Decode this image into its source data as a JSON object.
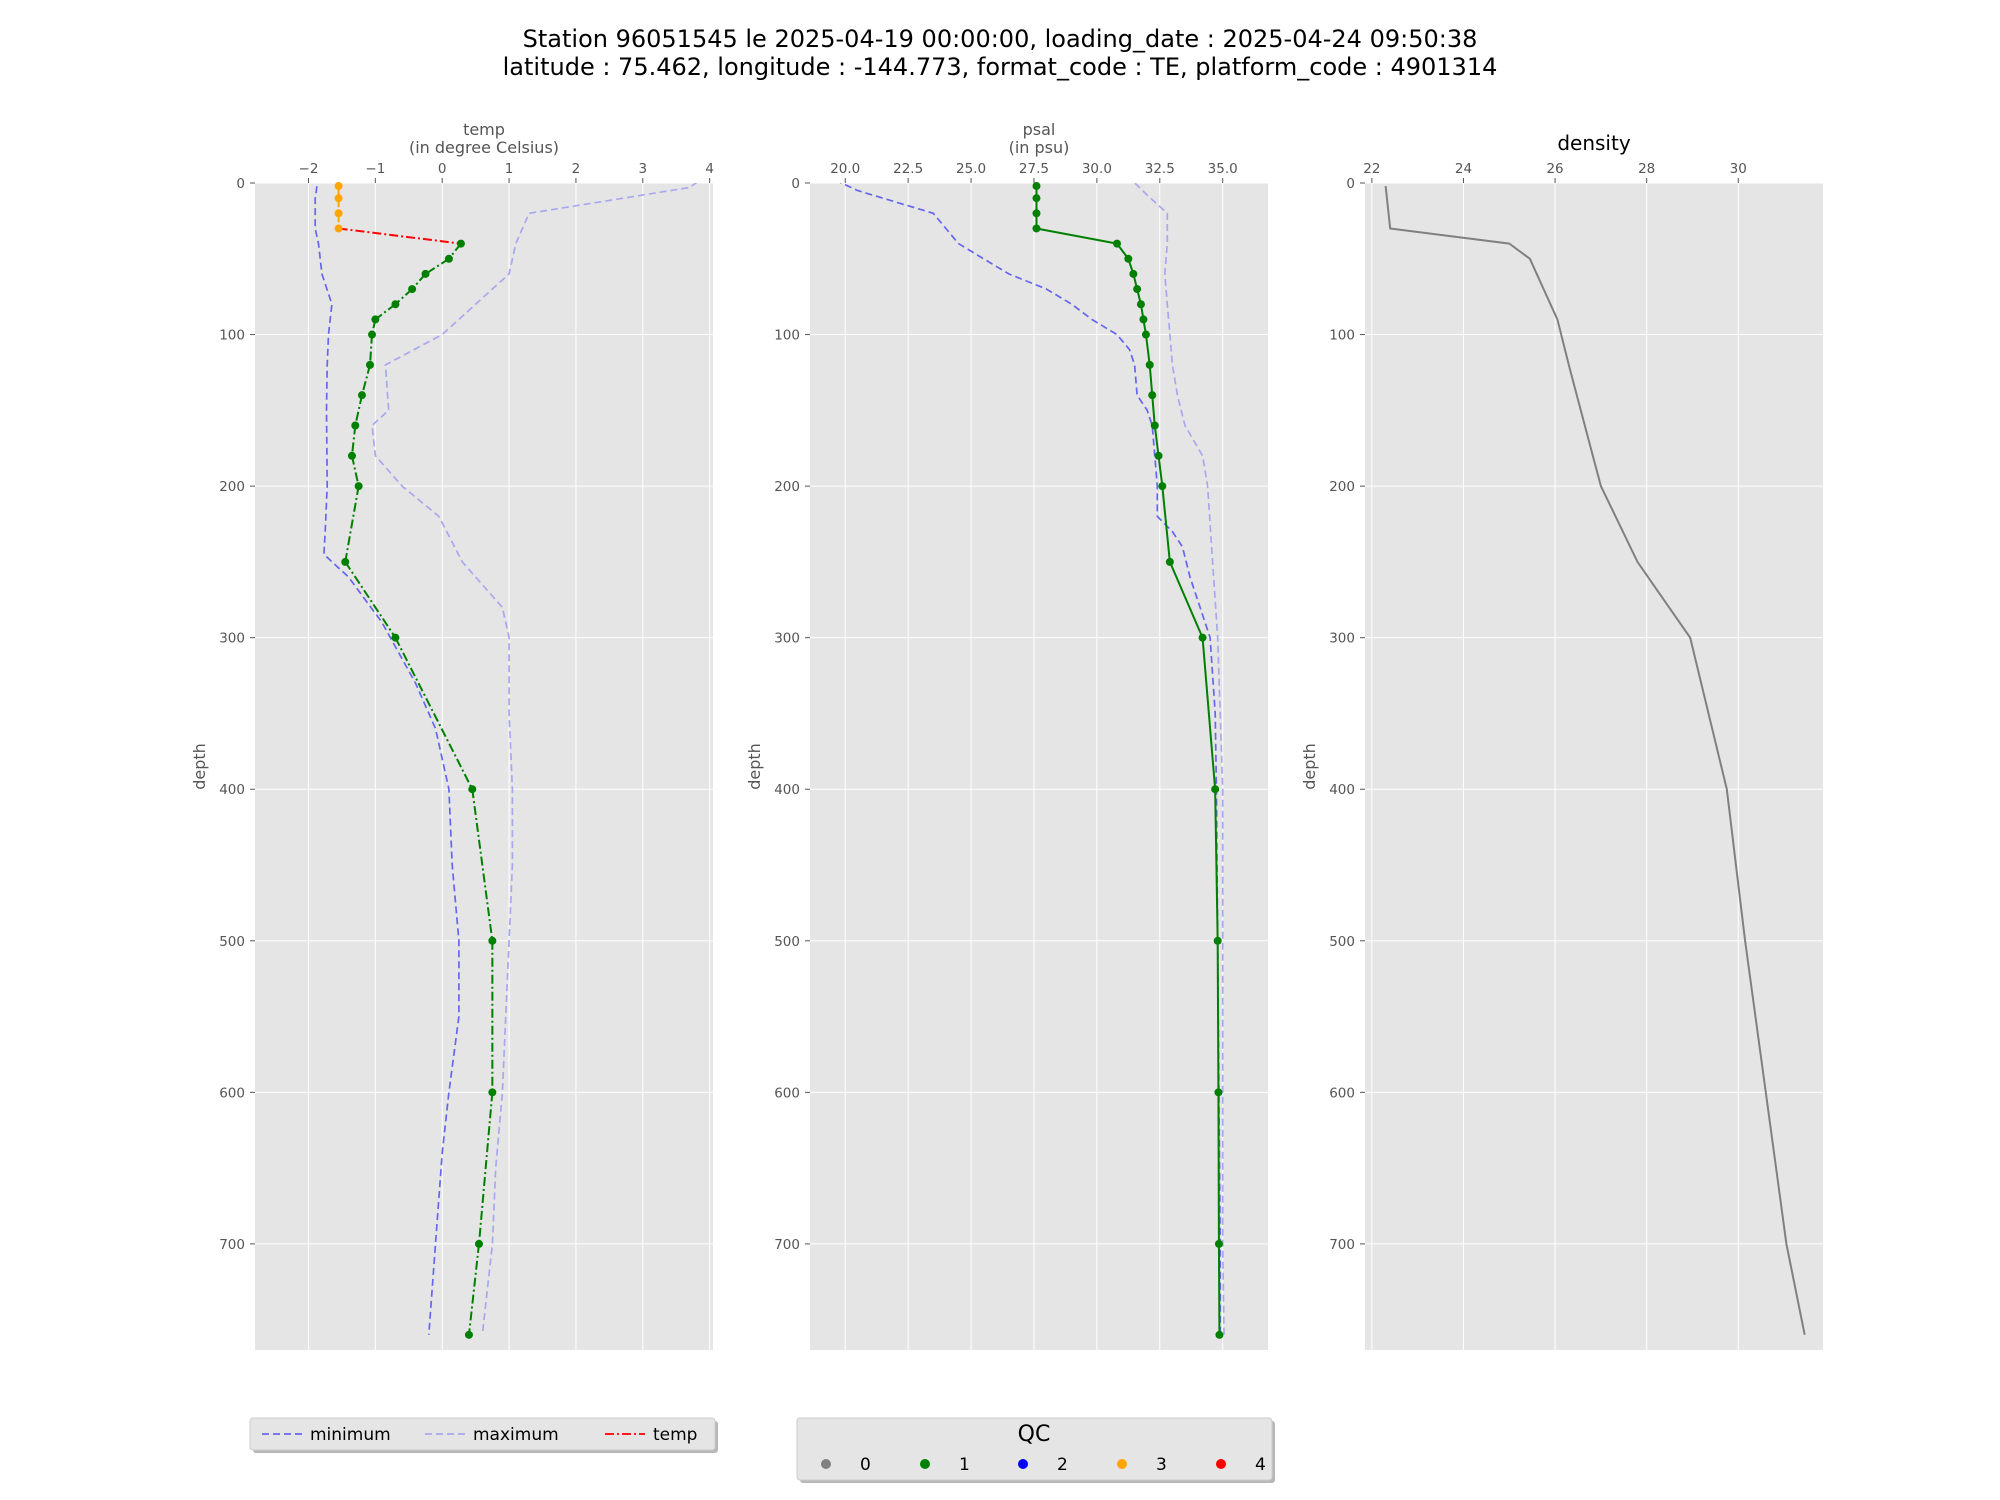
{
  "title": {
    "line1": "Station 96051545 le 2025-04-19 00:00:00, loading_date : 2025-04-24 09:50:38",
    "line2": "latitude : 75.462, longitude : -144.773, format_code : TE, platform_code : 4901314"
  },
  "colors": {
    "panel_bg": "#e5e5e5",
    "grid": "#ffffff",
    "minimum": "#6666ee",
    "maximum": "#a8a8ee",
    "temp_line": "#ff0000",
    "qc_1": "#008000",
    "qc_3": "#ffa500",
    "density": "#808080"
  },
  "chart_data": [
    {
      "type": "line",
      "panel": "temp",
      "title": "",
      "xlabel": "temp\n(in degree Celsius)",
      "ylabel": "depth",
      "x_axis_position": "top",
      "y_inverted": true,
      "xlim": [
        -2.8,
        4.05
      ],
      "ylim": [
        0,
        770
      ],
      "xticks": [
        -2,
        -1,
        0,
        1,
        2,
        3,
        4
      ],
      "xtick_labels": [
        "−2",
        "−1",
        "0",
        "1",
        "2",
        "3",
        "4"
      ],
      "yticks": [
        0,
        100,
        200,
        300,
        400,
        500,
        600,
        700
      ],
      "ytick_labels": [
        "0",
        "100",
        "200",
        "300",
        "400",
        "500",
        "600",
        "700"
      ],
      "grid": true,
      "series": [
        {
          "name": "minimum",
          "style": "dashed",
          "points": [
            [
              -1.85,
              -5
            ],
            [
              -1.9,
              10
            ],
            [
              -1.9,
              30
            ],
            [
              -1.85,
              40
            ],
            [
              -1.8,
              60
            ],
            [
              -1.65,
              80
            ],
            [
              -1.7,
              100
            ],
            [
              -1.72,
              120
            ],
            [
              -1.73,
              150
            ],
            [
              -1.72,
              200
            ],
            [
              -1.75,
              230
            ],
            [
              -1.77,
              245
            ],
            [
              -1.4,
              260
            ],
            [
              -0.9,
              290
            ],
            [
              -0.4,
              330
            ],
            [
              -0.1,
              360
            ],
            [
              0.1,
              400
            ],
            [
              0.15,
              450
            ],
            [
              0.25,
              500
            ],
            [
              0.25,
              550
            ],
            [
              0.1,
              600
            ],
            [
              0,
              640
            ],
            [
              -0.1,
              700
            ],
            [
              -0.2,
              760
            ]
          ]
        },
        {
          "name": "maximum",
          "style": "dashed",
          "points": [
            [
              3.95,
              -5
            ],
            [
              3.7,
              3
            ],
            [
              1.3,
              20
            ],
            [
              1.1,
              40
            ],
            [
              1.0,
              60
            ],
            [
              0.5,
              80
            ],
            [
              0,
              100
            ],
            [
              -0.85,
              120
            ],
            [
              -0.8,
              150
            ],
            [
              -1.05,
              160
            ],
            [
              -1.0,
              180
            ],
            [
              -0.6,
              200
            ],
            [
              -0.05,
              220
            ],
            [
              0.3,
              250
            ],
            [
              0.9,
              280
            ],
            [
              1.0,
              300
            ],
            [
              1.0,
              350
            ],
            [
              1.05,
              400
            ],
            [
              1.05,
              450
            ],
            [
              1.0,
              500
            ],
            [
              0.95,
              550
            ],
            [
              0.9,
              600
            ],
            [
              0.8,
              650
            ],
            [
              0.75,
              700
            ],
            [
              0.6,
              760
            ]
          ]
        },
        {
          "name": "temp",
          "style": "dashdot",
          "points": [
            [
              -1.55,
              2
            ],
            [
              -1.55,
              10
            ],
            [
              -1.55,
              20
            ],
            [
              -1.55,
              30
            ],
            [
              0.28,
              40
            ],
            [
              0.1,
              50
            ],
            [
              -0.25,
              60
            ],
            [
              -0.45,
              70
            ],
            [
              -0.7,
              80
            ],
            [
              -1.0,
              90
            ],
            [
              -1.05,
              100
            ],
            [
              -1.08,
              120
            ],
            [
              -1.2,
              140
            ],
            [
              -1.3,
              160
            ],
            [
              -1.35,
              180
            ],
            [
              -1.25,
              200
            ],
            [
              -1.45,
              250
            ],
            [
              -0.7,
              300
            ],
            [
              0.45,
              400
            ],
            [
              0.75,
              500
            ],
            [
              0.75,
              600
            ],
            [
              0.55,
              700
            ],
            [
              0.4,
              760
            ]
          ],
          "qc": [
            3,
            3,
            3,
            3,
            1,
            1,
            1,
            1,
            1,
            1,
            1,
            1,
            1,
            1,
            1,
            1,
            1,
            1,
            1,
            1,
            1,
            1,
            1
          ]
        }
      ]
    },
    {
      "type": "line",
      "panel": "psal",
      "title": "",
      "xlabel": "psal\n(in psu)",
      "ylabel": "depth",
      "x_axis_position": "top",
      "y_inverted": true,
      "xlim": [
        18.6,
        36.8
      ],
      "ylim": [
        0,
        770
      ],
      "xticks": [
        20.0,
        22.5,
        25.0,
        27.5,
        30.0,
        32.5,
        35.0
      ],
      "xtick_labels": [
        "20.0",
        "22.5",
        "25.0",
        "27.5",
        "30.0",
        "32.5",
        "35.0"
      ],
      "yticks": [
        0,
        100,
        200,
        300,
        400,
        500,
        600,
        700
      ],
      "ytick_labels": [
        "0",
        "100",
        "200",
        "300",
        "400",
        "500",
        "600",
        "700"
      ],
      "grid": true,
      "series": [
        {
          "name": "minimum",
          "style": "dashed",
          "points": [
            [
              19.2,
              -5
            ],
            [
              20.5,
              5
            ],
            [
              23.5,
              20
            ],
            [
              24,
              30
            ],
            [
              24.5,
              40
            ],
            [
              25.5,
              50
            ],
            [
              26.5,
              60
            ],
            [
              28,
              70
            ],
            [
              29,
              80
            ],
            [
              29.8,
              90
            ],
            [
              30.8,
              100
            ],
            [
              31.3,
              110
            ],
            [
              31.5,
              120
            ],
            [
              31.6,
              140
            ],
            [
              32.0,
              150
            ],
            [
              32.2,
              160
            ],
            [
              32.3,
              180
            ],
            [
              32.4,
              200
            ],
            [
              32.4,
              220
            ],
            [
              33.0,
              230
            ],
            [
              33.4,
              240
            ],
            [
              33.7,
              260
            ],
            [
              34.1,
              280
            ],
            [
              34.5,
              300
            ],
            [
              34.7,
              350
            ],
            [
              34.75,
              400
            ],
            [
              34.8,
              500
            ],
            [
              34.85,
              600
            ],
            [
              34.9,
              700
            ],
            [
              34.9,
              760
            ]
          ]
        },
        {
          "name": "maximum",
          "style": "dashed",
          "points": [
            [
              31.2,
              -5
            ],
            [
              32.0,
              8
            ],
            [
              32.8,
              20
            ],
            [
              32.8,
              40
            ],
            [
              32.7,
              60
            ],
            [
              32.8,
              80
            ],
            [
              32.9,
              100
            ],
            [
              33.0,
              120
            ],
            [
              33.2,
              140
            ],
            [
              33.5,
              160
            ],
            [
              34.2,
              180
            ],
            [
              34.4,
              200
            ],
            [
              34.6,
              250
            ],
            [
              34.8,
              300
            ],
            [
              34.9,
              350
            ],
            [
              35.0,
              400
            ],
            [
              35.0,
              500
            ],
            [
              35.0,
              600
            ],
            [
              35.0,
              700
            ],
            [
              35.05,
              760
            ]
          ]
        },
        {
          "name": "psal",
          "style": "solid",
          "points": [
            [
              27.6,
              2
            ],
            [
              27.6,
              10
            ],
            [
              27.6,
              20
            ],
            [
              27.6,
              30
            ],
            [
              30.8,
              40
            ],
            [
              31.25,
              50
            ],
            [
              31.45,
              60
            ],
            [
              31.6,
              70
            ],
            [
              31.75,
              80
            ],
            [
              31.85,
              90
            ],
            [
              31.95,
              100
            ],
            [
              32.1,
              120
            ],
            [
              32.2,
              140
            ],
            [
              32.3,
              160
            ],
            [
              32.45,
              180
            ],
            [
              32.6,
              200
            ],
            [
              32.9,
              250
            ],
            [
              34.2,
              300
            ],
            [
              34.7,
              400
            ],
            [
              34.8,
              500
            ],
            [
              34.83,
              600
            ],
            [
              34.85,
              700
            ],
            [
              34.87,
              760
            ]
          ],
          "qc": [
            1,
            1,
            1,
            1,
            1,
            1,
            1,
            1,
            1,
            1,
            1,
            1,
            1,
            1,
            1,
            1,
            1,
            1,
            1,
            1,
            1,
            1,
            1
          ]
        }
      ]
    },
    {
      "type": "line",
      "panel": "density",
      "title": "density",
      "xlabel": "",
      "ylabel": "depth",
      "x_axis_position": "top",
      "y_inverted": true,
      "xlim": [
        21.85,
        31.85
      ],
      "ylim": [
        0,
        770
      ],
      "xticks": [
        22,
        24,
        26,
        28,
        30
      ],
      "xtick_labels": [
        "22",
        "24",
        "26",
        "28",
        "30"
      ],
      "yticks": [
        0,
        100,
        200,
        300,
        400,
        500,
        600,
        700
      ],
      "ytick_labels": [
        "0",
        "100",
        "200",
        "300",
        "400",
        "500",
        "600",
        "700"
      ],
      "grid": true,
      "series": [
        {
          "name": "density",
          "style": "solid",
          "points": [
            [
              22.3,
              2
            ],
            [
              22.4,
              30
            ],
            [
              25.0,
              40
            ],
            [
              25.45,
              50
            ],
            [
              25.75,
              70
            ],
            [
              26.05,
              90
            ],
            [
              26.3,
              120
            ],
            [
              26.65,
              160
            ],
            [
              27.0,
              200
            ],
            [
              27.8,
              250
            ],
            [
              28.95,
              300
            ],
            [
              29.75,
              400
            ],
            [
              30.15,
              500
            ],
            [
              30.6,
              600
            ],
            [
              31.05,
              700
            ],
            [
              31.45,
              760
            ]
          ]
        }
      ]
    }
  ],
  "legend_series": {
    "items": [
      {
        "label": "minimum",
        "style": "dashed",
        "color_key": "minimum"
      },
      {
        "label": "maximum",
        "style": "dashed",
        "color_key": "maximum"
      },
      {
        "label": "temp",
        "style": "dashdot",
        "color_key": "temp_line"
      }
    ]
  },
  "legend_qc": {
    "title": "QC",
    "items": [
      {
        "label": "0",
        "color": "#808080"
      },
      {
        "label": "1",
        "color": "#008000"
      },
      {
        "label": "2",
        "color": "#0000ff"
      },
      {
        "label": "3",
        "color": "#ffa500"
      },
      {
        "label": "4",
        "color": "#ff0000"
      }
    ]
  }
}
